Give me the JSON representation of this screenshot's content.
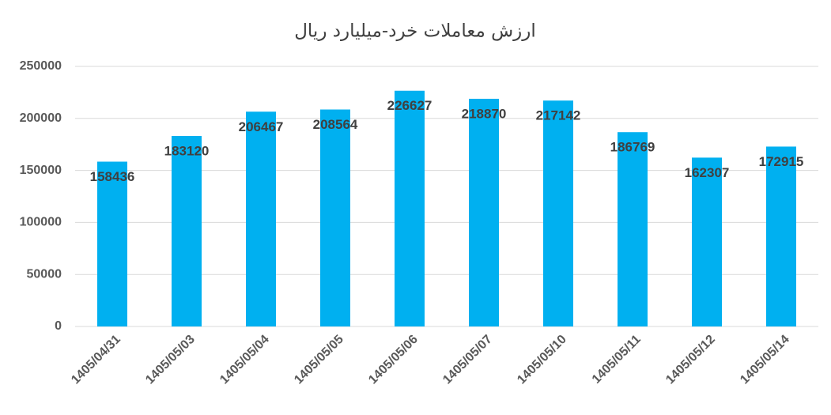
{
  "chart_data": {
    "type": "bar",
    "title": "ارزش معاملات خرد-میلیارد ریال",
    "categories": [
      "1405/04/31",
      "1405/05/03",
      "1405/05/04",
      "1405/05/05",
      "1405/05/06",
      "1405/05/07",
      "1405/05/10",
      "1405/05/11",
      "1405/05/12",
      "1405/05/14"
    ],
    "values": [
      158436,
      183120,
      206467,
      208564,
      226627,
      218870,
      217142,
      186769,
      162307,
      172915
    ],
    "color": "#00b0f0",
    "ylim": [
      0,
      250000
    ],
    "yticks": [
      0,
      50000,
      100000,
      150000,
      200000,
      250000
    ],
    "grid": true
  }
}
